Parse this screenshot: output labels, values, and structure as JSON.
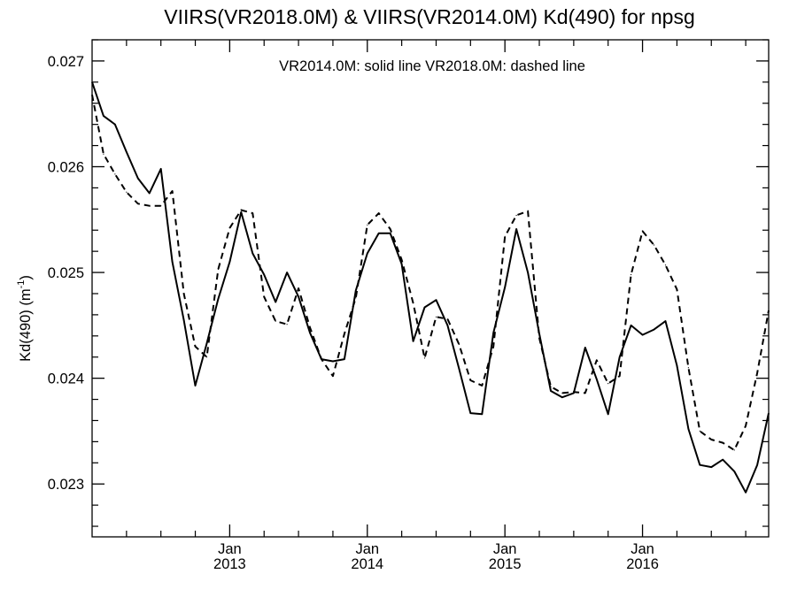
{
  "chart_data": {
    "type": "line",
    "title": "VIIRS(VR2018.0M) & VIIRS(VR2014.0M)  Kd(490) for npsg",
    "ylabel_main": "Kd(490) (m",
    "ylabel_sup": "-1",
    "ylabel_close": ")",
    "annotation": "VR2014.0M: solid line   VR2018.0M: dashed line",
    "ylim": [
      0.0225,
      0.0272
    ],
    "xlim": [
      "2012-01",
      "2016-12"
    ],
    "yticks": [
      0.023,
      0.024,
      0.025,
      0.026,
      0.027
    ],
    "ytick_labels": [
      "0.023",
      "0.024",
      "0.025",
      "0.026",
      "0.027"
    ],
    "xtick_labels": [
      {
        "month": "Jan",
        "year": "2013"
      },
      {
        "month": "Jan",
        "year": "2014"
      },
      {
        "month": "Jan",
        "year": "2015"
      },
      {
        "month": "Jan",
        "year": "2016"
      }
    ],
    "x": [
      "2012-01",
      "2012-02",
      "2012-03",
      "2012-04",
      "2012-05",
      "2012-06",
      "2012-07",
      "2012-08",
      "2012-09",
      "2012-10",
      "2012-11",
      "2012-12",
      "2013-01",
      "2013-02",
      "2013-03",
      "2013-04",
      "2013-05",
      "2013-06",
      "2013-07",
      "2013-08",
      "2013-09",
      "2013-10",
      "2013-11",
      "2013-12",
      "2014-01",
      "2014-02",
      "2014-03",
      "2014-04",
      "2014-05",
      "2014-06",
      "2014-07",
      "2014-08",
      "2014-09",
      "2014-10",
      "2014-11",
      "2014-12",
      "2015-01",
      "2015-02",
      "2015-03",
      "2015-04",
      "2015-05",
      "2015-06",
      "2015-07",
      "2015-08",
      "2015-09",
      "2015-10",
      "2015-11",
      "2015-12",
      "2016-01",
      "2016-02",
      "2016-03",
      "2016-04",
      "2016-05",
      "2016-06",
      "2016-07",
      "2016-08",
      "2016-09",
      "2016-10",
      "2016-11",
      "2016-12"
    ],
    "series": [
      {
        "style": "solid",
        "values": [
          0.0268,
          0.02648,
          0.0264,
          0.02614,
          0.02589,
          0.02575,
          0.02598,
          0.0251,
          0.02455,
          0.02393,
          0.02433,
          0.02475,
          0.0251,
          0.02557,
          0.02518,
          0.02498,
          0.02472,
          0.025,
          0.02477,
          0.02443,
          0.02418,
          0.02416,
          0.02418,
          0.02483,
          0.02518,
          0.02537,
          0.02537,
          0.02508,
          0.02435,
          0.02467,
          0.02474,
          0.0245,
          0.02409,
          0.02367,
          0.02366,
          0.02443,
          0.02486,
          0.02541,
          0.025,
          0.02442,
          0.02388,
          0.02382,
          0.02386,
          0.02429,
          0.02399,
          0.02366,
          0.0242,
          0.0245,
          0.02441,
          0.02446,
          0.02454,
          0.02412,
          0.02352,
          0.02318,
          0.02316,
          0.02323,
          0.02312,
          0.02292,
          0.02318,
          0.02367
        ]
      },
      {
        "style": "dashed",
        "values": [
          0.02668,
          0.02612,
          0.02593,
          0.02576,
          0.02565,
          0.02563,
          0.02563,
          0.02577,
          0.0248,
          0.0243,
          0.0242,
          0.02503,
          0.02542,
          0.02559,
          0.02556,
          0.02477,
          0.02454,
          0.02451,
          0.02485,
          0.02448,
          0.02418,
          0.02402,
          0.02442,
          0.02476,
          0.02545,
          0.02556,
          0.02541,
          0.02512,
          0.02471,
          0.02419,
          0.02458,
          0.02456,
          0.02432,
          0.02398,
          0.02393,
          0.0243,
          0.02534,
          0.02554,
          0.02558,
          0.02438,
          0.02392,
          0.02386,
          0.02387,
          0.02386,
          0.02417,
          0.02395,
          0.02402,
          0.02498,
          0.02539,
          0.02526,
          0.02507,
          0.02484,
          0.0241,
          0.0235,
          0.02342,
          0.02339,
          0.02332,
          0.02355,
          0.02405,
          0.02464
        ]
      }
    ]
  }
}
